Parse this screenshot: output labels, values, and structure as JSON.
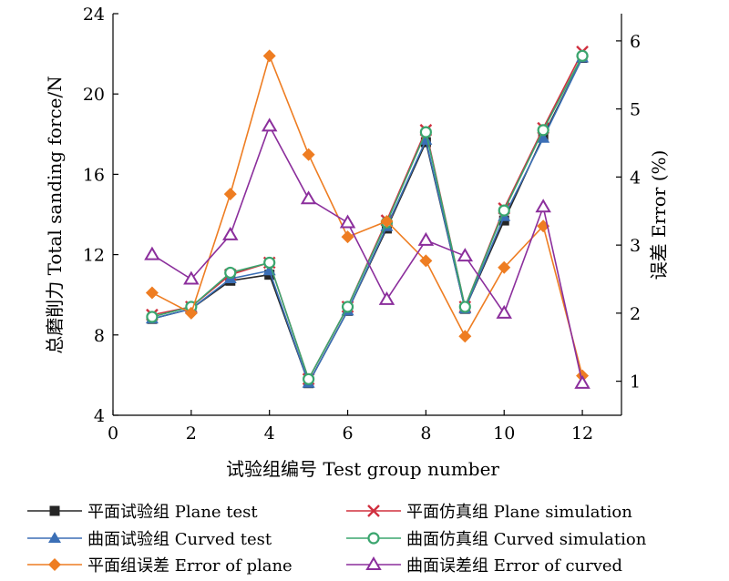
{
  "chart_data": {
    "type": "line",
    "xlabel": "试验组编号 Test group number",
    "ylabel_left": "总磨削力 Total sanding force/N",
    "ylabel_right": "误差 Error (%)",
    "xlim": [
      0,
      13
    ],
    "ylim_left": [
      4,
      24
    ],
    "ylim_right": [
      0.5,
      6.4
    ],
    "x_ticks": [
      0,
      2,
      4,
      6,
      8,
      10,
      12
    ],
    "y_ticks_left": [
      4,
      8,
      12,
      16,
      20,
      24
    ],
    "y_ticks_right": [
      1,
      2,
      3,
      4,
      5,
      6
    ],
    "x": [
      1,
      2,
      3,
      4,
      5,
      6,
      7,
      8,
      9,
      10,
      11,
      12
    ],
    "series": [
      {
        "name": "平面试验组 Plane test",
        "axis": "left",
        "color": "#262626",
        "marker": "square",
        "values": [
          8.8,
          9.3,
          10.7,
          11.0,
          5.6,
          9.2,
          13.3,
          17.6,
          9.3,
          13.7,
          17.9,
          21.8
        ]
      },
      {
        "name": "平面仿真组 Plane simulation",
        "axis": "left",
        "color": "#d0303f",
        "marker": "x",
        "values": [
          9.0,
          9.4,
          11.0,
          11.6,
          5.8,
          9.4,
          13.7,
          18.2,
          9.4,
          14.3,
          18.3,
          22.1
        ]
      },
      {
        "name": "曲面试验组 Curved test",
        "axis": "left",
        "color": "#3b6fb6",
        "marker": "triangle",
        "values": [
          8.8,
          9.3,
          10.8,
          11.2,
          5.6,
          9.2,
          13.4,
          17.7,
          9.3,
          13.9,
          17.8,
          21.8
        ]
      },
      {
        "name": "曲面仿真组 Curved simulation",
        "axis": "left",
        "color": "#3aa56e",
        "marker": "circle",
        "values": [
          8.9,
          9.4,
          11.1,
          11.6,
          5.8,
          9.4,
          13.6,
          18.1,
          9.4,
          14.2,
          18.2,
          21.9
        ]
      },
      {
        "name": "平面组误差 Error of plane",
        "axis": "right",
        "color": "#ee7d22",
        "marker": "diamond",
        "values": [
          2.3,
          2.0,
          3.75,
          5.78,
          4.33,
          3.12,
          3.35,
          2.77,
          1.66,
          2.67,
          3.28,
          1.08
        ]
      },
      {
        "name": "曲面误差组 Error of curved",
        "axis": "right",
        "color": "#8b2e9c",
        "marker": "triangle-open",
        "values": [
          2.86,
          2.5,
          3.15,
          4.75,
          3.68,
          3.33,
          2.2,
          3.07,
          2.84,
          2.0,
          3.56,
          0.97
        ]
      }
    ]
  }
}
